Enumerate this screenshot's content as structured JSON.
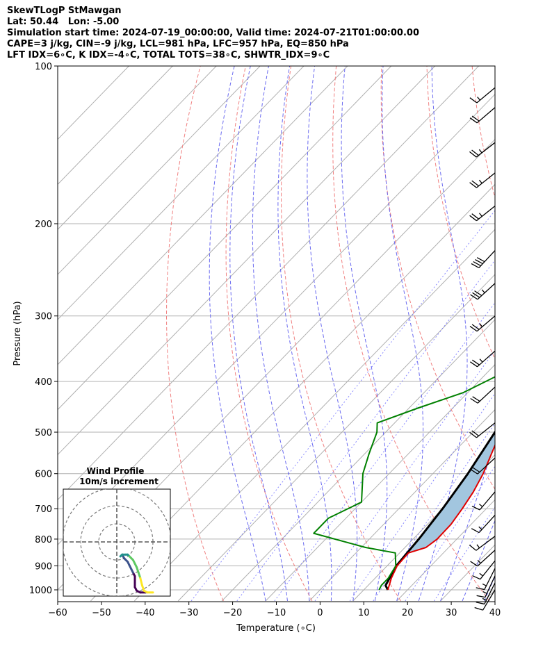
{
  "header": {
    "line1": "SkewTLogP StMawgan",
    "line2": "Lat: 50.44   Lon: -5.00",
    "line3": "Simulation start time: 2024-07-19_00:00:00, Valid time: 2024-07-21T01:00:00.00",
    "line4": "CAPE=3 j/kg, CIN=-9 j/kg, LCL=981 hPa, LFC=957 hPa, EQ=850 hPa",
    "line5": "LFT IDX=6∘C, K IDX=-4∘C, TOTAL TOTS=38∘C, SHWTR_IDX=9∘C"
  },
  "colors": {
    "temperature": "#e00000",
    "dewpoint": "#008000",
    "parcel": "#000000",
    "cape_fill": "#a2c6df",
    "dry_adiabat": "#f08080",
    "moist_adiabat": "#6b6bf0",
    "mixing_ratio": "#5a5aff",
    "isotherm": "#b0b0b0",
    "purple_line": "#9b59b6"
  },
  "chart_data": {
    "type": "skew-t",
    "xlabel": "Temperature (∘C)",
    "ylabel": "Pressure (hPa)",
    "xlim": [
      -60,
      40
    ],
    "ylim": [
      1050,
      100
    ],
    "x_ticks": [
      "−60",
      "−50",
      "−40",
      "−30",
      "−20",
      "−10",
      "0",
      "10",
      "20",
      "30",
      "40"
    ],
    "x_tick_values": [
      -60,
      -50,
      -40,
      -30,
      -20,
      -10,
      0,
      10,
      20,
      30,
      40
    ],
    "y_ticks": [
      "1000",
      "900",
      "800",
      "700",
      "600",
      "500",
      "400",
      "300",
      "200",
      "100"
    ],
    "y_tick_values": [
      1000,
      900,
      800,
      700,
      600,
      500,
      400,
      300,
      200,
      100
    ],
    "grid": true,
    "series": [
      {
        "key": "temperature",
        "points": [
          [
            1000,
            15.5
          ],
          [
            950,
            13.7
          ],
          [
            900,
            12.3
          ],
          [
            850,
            12.0
          ],
          [
            830,
            14.8
          ],
          [
            800,
            15.5
          ],
          [
            750,
            15.4
          ],
          [
            700,
            14.5
          ],
          [
            650,
            13.3
          ],
          [
            600,
            11.5
          ],
          [
            550,
            9.0
          ],
          [
            500,
            6.3
          ],
          [
            480,
            5.0
          ],
          [
            450,
            5.0
          ],
          [
            420,
            4.8
          ],
          [
            380,
            3.5
          ],
          [
            350,
            2.5
          ],
          [
            320,
            1.5
          ],
          [
            300,
            0.6
          ],
          [
            280,
            -0.3
          ],
          [
            260,
            -1.5
          ],
          [
            250,
            -1.8
          ],
          [
            230,
            -2.0
          ],
          [
            210,
            -1.5
          ],
          [
            200,
            0.3
          ],
          [
            190,
            1.8
          ],
          [
            180,
            2.5
          ],
          [
            170,
            3.0
          ],
          [
            160,
            3.5
          ],
          [
            150,
            4.2
          ],
          [
            140,
            6.0
          ],
          [
            130,
            8.0
          ],
          [
            120,
            10.0
          ],
          [
            110,
            12.2
          ],
          [
            100,
            14.0
          ]
        ]
      },
      {
        "key": "dewpoint",
        "points": [
          [
            1000,
            13.5
          ],
          [
            980,
            13.0
          ],
          [
            950,
            13.0
          ],
          [
            900,
            12.0
          ],
          [
            850,
            9.0
          ],
          [
            830,
            1.0
          ],
          [
            780,
            -14.0
          ],
          [
            730,
            -14.0
          ],
          [
            680,
            -10.0
          ],
          [
            600,
            -16.0
          ],
          [
            550,
            -19.0
          ],
          [
            500,
            -22.0
          ],
          [
            480,
            -24.0
          ],
          [
            450,
            -18.0
          ],
          [
            420,
            -11.0
          ],
          [
            390,
            -7.0
          ],
          [
            360,
            -1.0
          ],
          [
            330,
            1.0
          ],
          [
            300,
            0.0
          ],
          [
            270,
            -1.0
          ],
          [
            250,
            -2.5
          ],
          [
            225,
            -3.5
          ],
          [
            205,
            -6.0
          ],
          [
            190,
            -13.0
          ],
          [
            180,
            -12.5
          ],
          [
            170,
            -12.5
          ],
          [
            160,
            -12.5
          ],
          [
            150,
            -12.0
          ],
          [
            140,
            -11.0
          ],
          [
            130,
            -9.0
          ],
          [
            120,
            -6.0
          ],
          [
            110,
            -3.0
          ],
          [
            100,
            0.0
          ]
        ]
      },
      {
        "key": "parcel",
        "points": [
          [
            1000,
            15.5
          ],
          [
            981,
            14.0
          ],
          [
            900,
            12.1
          ],
          [
            850,
            11.7
          ],
          [
            800,
            11.3
          ],
          [
            700,
            10.0
          ],
          [
            600,
            8.0
          ],
          [
            500,
            5.0
          ],
          [
            400,
            0.8
          ],
          [
            300,
            -5.0
          ],
          [
            250,
            -8.8
          ],
          [
            200,
            -13.0
          ],
          [
            150,
            -17.0
          ],
          [
            100,
            -20.0
          ]
        ]
      }
    ],
    "cape_region": "between parcel and temperature from 850 to 100 hPa",
    "wind_barbs": [
      {
        "p": 1000,
        "u": 6,
        "v": 10
      },
      {
        "p": 970,
        "u": 6,
        "v": 12
      },
      {
        "p": 940,
        "u": 6,
        "v": 13
      },
      {
        "p": 910,
        "u": 6,
        "v": 12
      },
      {
        "p": 880,
        "u": 8,
        "v": 10
      },
      {
        "p": 840,
        "u": 11,
        "v": 10
      },
      {
        "p": 790,
        "u": 12,
        "v": 9
      },
      {
        "p": 720,
        "u": 10,
        "v": 11
      },
      {
        "p": 650,
        "u": 11,
        "v": 13
      },
      {
        "p": 560,
        "u": 13,
        "v": 12
      },
      {
        "p": 480,
        "u": 15,
        "v": 12
      },
      {
        "p": 410,
        "u": 15,
        "v": 14
      },
      {
        "p": 350,
        "u": 18,
        "v": 16
      },
      {
        "p": 300,
        "u": 20,
        "v": 17
      },
      {
        "p": 260,
        "u": 24,
        "v": 22
      },
      {
        "p": 225,
        "u": 26,
        "v": 28
      },
      {
        "p": 185,
        "u": 20,
        "v": 16
      },
      {
        "p": 160,
        "u": 20,
        "v": 16
      },
      {
        "p": 140,
        "u": 18,
        "v": 14
      },
      {
        "p": 120,
        "u": 14,
        "v": 12
      },
      {
        "p": 110,
        "u": 12,
        "v": 10
      }
    ],
    "hodograph": {
      "title": "Wind Profile",
      "subtitle": "10m/s increment",
      "rings_ms": [
        10,
        20,
        30
      ],
      "range_ms": 30,
      "trace": [
        [
          16,
          -28
        ],
        [
          13,
          -28
        ],
        [
          11,
          -27
        ],
        [
          10,
          -25
        ],
        [
          10,
          -22
        ],
        [
          10,
          -19
        ],
        [
          9,
          -17
        ],
        [
          8,
          -15
        ],
        [
          7,
          -13
        ],
        [
          6,
          -11
        ],
        [
          5,
          -10
        ],
        [
          4,
          -9
        ],
        [
          3,
          -7
        ],
        [
          2,
          -8
        ],
        [
          3,
          -7
        ],
        [
          5,
          -7
        ],
        [
          6,
          -7
        ],
        [
          7,
          -8
        ],
        [
          8,
          -9
        ],
        [
          9,
          -10
        ],
        [
          10,
          -12
        ],
        [
          11,
          -14
        ],
        [
          12,
          -17
        ],
        [
          13,
          -20
        ],
        [
          14,
          -24
        ],
        [
          15,
          -27
        ],
        [
          17,
          -28
        ],
        [
          20,
          -28
        ]
      ]
    }
  }
}
